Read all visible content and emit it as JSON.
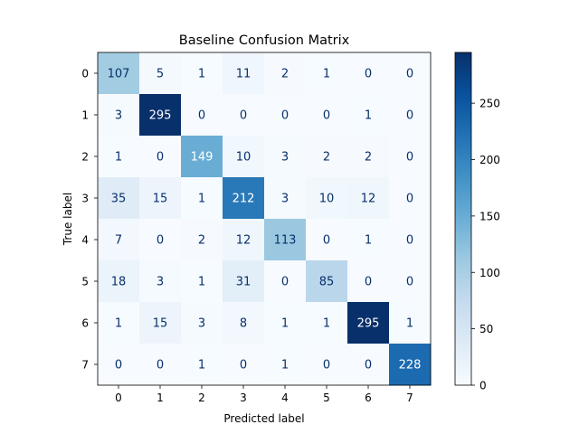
{
  "chart_data": {
    "type": "heatmap",
    "title": "Baseline Confusion Matrix",
    "xlabel": "Predicted label",
    "ylabel": "True label",
    "x_categories": [
      "0",
      "1",
      "2",
      "3",
      "4",
      "5",
      "6",
      "7"
    ],
    "y_categories": [
      "0",
      "1",
      "2",
      "3",
      "4",
      "5",
      "6",
      "7"
    ],
    "matrix": [
      [
        107,
        5,
        1,
        11,
        2,
        1,
        0,
        0
      ],
      [
        3,
        295,
        0,
        0,
        0,
        0,
        1,
        0
      ],
      [
        1,
        0,
        149,
        10,
        3,
        2,
        2,
        0
      ],
      [
        35,
        15,
        1,
        212,
        3,
        10,
        12,
        0
      ],
      [
        7,
        0,
        2,
        12,
        113,
        0,
        1,
        0
      ],
      [
        18,
        3,
        1,
        31,
        0,
        85,
        0,
        0
      ],
      [
        1,
        15,
        3,
        8,
        1,
        1,
        295,
        1
      ],
      [
        0,
        0,
        1,
        0,
        1,
        0,
        0,
        228
      ]
    ],
    "colormap": "Blues",
    "vmin": 0,
    "vmax": 295,
    "colorbar_ticks": [
      "0",
      "50",
      "100",
      "150",
      "200",
      "250"
    ],
    "colorbar_tick_values": [
      0,
      50,
      100,
      150,
      200,
      250
    ],
    "grid": false
  }
}
